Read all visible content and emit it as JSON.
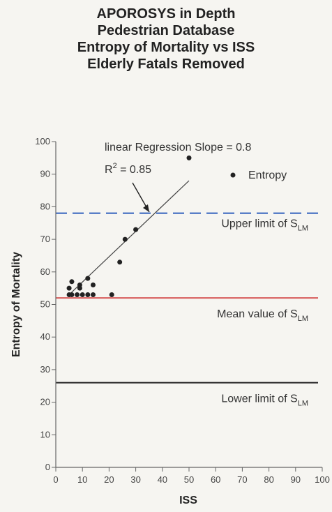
{
  "title_lines": [
    "APOROSYS in Depth",
    "Pedestrian Database",
    "Entropy of Mortality vs ISS",
    "Elderly Fatals Removed"
  ],
  "colors": {
    "upper_limit": "#5a7fc8",
    "mean": "#d75a5a",
    "lower_limit": "#222222",
    "points": "#222222",
    "regression": "#444444"
  },
  "chart_data": {
    "type": "scatter",
    "title": "APOROSYS in Depth Pedestrian Database Entropy of Mortality vs ISS Elderly Fatals Removed",
    "xlabel": "ISS",
    "ylabel": "Entropy of Mortality",
    "xlim": [
      0,
      100
    ],
    "ylim": [
      0,
      100
    ],
    "x_ticks": [
      0,
      10,
      20,
      30,
      40,
      50,
      60,
      70,
      80,
      90,
      100
    ],
    "y_ticks": [
      0,
      10,
      20,
      30,
      40,
      50,
      60,
      70,
      80,
      90,
      100
    ],
    "grid": false,
    "legend": {
      "position": "top-right",
      "entries": [
        "Entropy"
      ]
    },
    "series": [
      {
        "name": "Entropy",
        "points": [
          {
            "x": 5,
            "y": 53
          },
          {
            "x": 5,
            "y": 55
          },
          {
            "x": 6,
            "y": 53
          },
          {
            "x": 6,
            "y": 57
          },
          {
            "x": 8,
            "y": 53
          },
          {
            "x": 9,
            "y": 55
          },
          {
            "x": 9,
            "y": 56
          },
          {
            "x": 10,
            "y": 53
          },
          {
            "x": 12,
            "y": 53
          },
          {
            "x": 12,
            "y": 58
          },
          {
            "x": 14,
            "y": 53
          },
          {
            "x": 14,
            "y": 56
          },
          {
            "x": 21,
            "y": 53
          },
          {
            "x": 24,
            "y": 63
          },
          {
            "x": 26,
            "y": 70
          },
          {
            "x": 30,
            "y": 73
          },
          {
            "x": 50,
            "y": 95
          }
        ]
      }
    ],
    "regression_line": {
      "x": [
        5,
        50
      ],
      "y": [
        53,
        88
      ]
    },
    "reference_lines": [
      {
        "key": "upper",
        "label": "Upper limit of S",
        "subscript": "LM",
        "y": 78,
        "style": "dashed"
      },
      {
        "key": "mean",
        "label": "Mean value of S",
        "subscript": "LM",
        "y": 52,
        "style": "solid"
      },
      {
        "key": "lower",
        "label": "Lower limit of S",
        "subscript": "LM",
        "y": 26,
        "style": "solid"
      }
    ],
    "annotations": {
      "regression_text": "linear Regression Slope = 0.8",
      "r2_base": "R",
      "r2_sup": "2",
      "r2_value": " = 0.85"
    }
  }
}
